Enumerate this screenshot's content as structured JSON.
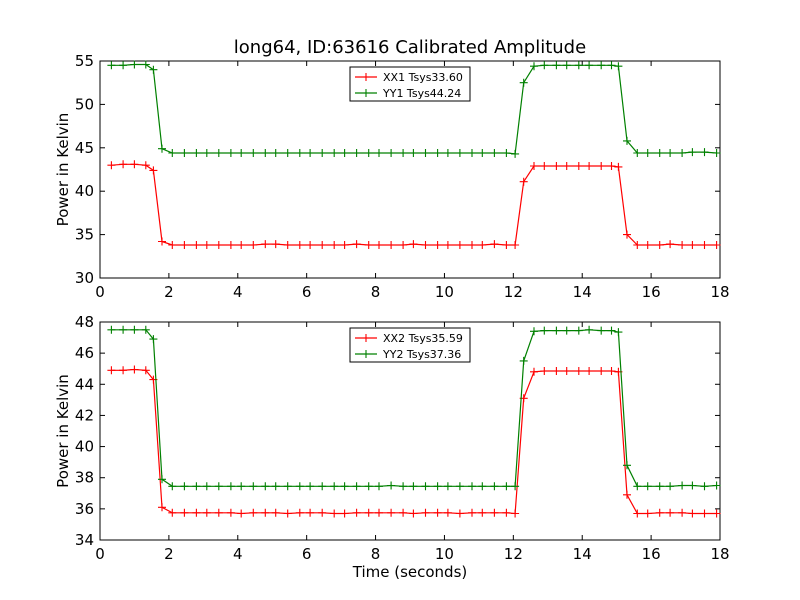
{
  "title": "long64, ID:63616 Calibrated Amplitude",
  "chart_data": [
    {
      "type": "line",
      "title": "long64, ID:63616 Calibrated Amplitude",
      "xlabel": "",
      "ylabel": "Power in Kelvin",
      "xlim": [
        0,
        18
      ],
      "ylim": [
        30,
        55
      ],
      "x_ticks": [
        "0",
        "2",
        "4",
        "6",
        "8",
        "10",
        "12",
        "14",
        "16",
        "18"
      ],
      "y_ticks": [
        "30",
        "35",
        "40",
        "45",
        "50",
        "55"
      ],
      "grid": false,
      "legend_position": "top-center",
      "x": [
        0.33,
        0.67,
        1.0,
        1.33,
        1.55,
        1.8,
        2.1,
        2.45,
        2.8,
        3.1,
        3.45,
        3.8,
        4.1,
        4.45,
        4.8,
        5.1,
        5.45,
        5.8,
        6.1,
        6.45,
        6.8,
        7.1,
        7.45,
        7.8,
        8.1,
        8.45,
        8.8,
        9.1,
        9.45,
        9.8,
        10.1,
        10.45,
        10.8,
        11.1,
        11.45,
        11.8,
        12.05,
        12.3,
        12.6,
        12.9,
        13.25,
        13.55,
        13.9,
        14.2,
        14.55,
        14.85,
        15.05,
        15.3,
        15.6,
        15.9,
        16.25,
        16.55,
        16.9,
        17.2,
        17.55,
        17.9
      ],
      "series": [
        {
          "name": "XX1 Tsys33.60",
          "color": "#ff0000",
          "values": [
            43.0,
            43.1,
            43.1,
            43.0,
            42.4,
            34.2,
            33.8,
            33.8,
            33.8,
            33.8,
            33.8,
            33.8,
            33.8,
            33.8,
            33.9,
            33.9,
            33.8,
            33.8,
            33.8,
            33.8,
            33.8,
            33.8,
            33.9,
            33.8,
            33.8,
            33.8,
            33.8,
            33.9,
            33.8,
            33.8,
            33.8,
            33.8,
            33.8,
            33.8,
            33.9,
            33.8,
            33.8,
            41.1,
            42.9,
            42.9,
            42.9,
            42.9,
            42.9,
            42.9,
            42.9,
            42.9,
            42.8,
            35.0,
            33.8,
            33.8,
            33.8,
            33.9,
            33.8,
            33.8,
            33.8,
            33.8
          ]
        },
        {
          "name": "YY1 Tsys44.24",
          "color": "#008000",
          "values": [
            54.5,
            54.5,
            54.6,
            54.6,
            54.0,
            44.9,
            44.4,
            44.4,
            44.4,
            44.4,
            44.4,
            44.4,
            44.4,
            44.4,
            44.4,
            44.4,
            44.4,
            44.4,
            44.4,
            44.4,
            44.4,
            44.4,
            44.4,
            44.4,
            44.4,
            44.4,
            44.4,
            44.4,
            44.4,
            44.4,
            44.4,
            44.4,
            44.4,
            44.4,
            44.4,
            44.4,
            44.3,
            52.5,
            54.4,
            54.5,
            54.5,
            54.5,
            54.5,
            54.5,
            54.5,
            54.5,
            54.4,
            45.8,
            44.4,
            44.4,
            44.4,
            44.4,
            44.4,
            44.5,
            44.5,
            44.4
          ]
        }
      ]
    },
    {
      "type": "line",
      "title": "",
      "xlabel": "Time (seconds)",
      "ylabel": "Power in Kelvin",
      "xlim": [
        0,
        18
      ],
      "ylim": [
        34,
        48
      ],
      "x_ticks": [
        "0",
        "2",
        "4",
        "6",
        "8",
        "10",
        "12",
        "14",
        "16",
        "18"
      ],
      "y_ticks": [
        "34",
        "36",
        "38",
        "40",
        "42",
        "44",
        "46",
        "48"
      ],
      "grid": false,
      "legend_position": "top-center",
      "x": [
        0.33,
        0.67,
        1.0,
        1.33,
        1.55,
        1.8,
        2.1,
        2.45,
        2.8,
        3.1,
        3.45,
        3.8,
        4.1,
        4.45,
        4.8,
        5.1,
        5.45,
        5.8,
        6.1,
        6.45,
        6.8,
        7.1,
        7.45,
        7.8,
        8.1,
        8.45,
        8.8,
        9.1,
        9.45,
        9.8,
        10.1,
        10.45,
        10.8,
        11.1,
        11.45,
        11.8,
        12.05,
        12.3,
        12.6,
        12.9,
        13.25,
        13.55,
        13.9,
        14.2,
        14.55,
        14.85,
        15.05,
        15.3,
        15.6,
        15.9,
        16.25,
        16.55,
        16.9,
        17.2,
        17.55,
        17.9
      ],
      "series": [
        {
          "name": "XX2 Tsys35.59",
          "color": "#ff0000",
          "values": [
            44.9,
            44.9,
            44.95,
            44.9,
            44.3,
            36.1,
            35.75,
            35.75,
            35.75,
            35.75,
            35.75,
            35.75,
            35.7,
            35.75,
            35.75,
            35.75,
            35.7,
            35.75,
            35.75,
            35.75,
            35.7,
            35.7,
            35.75,
            35.75,
            35.75,
            35.75,
            35.75,
            35.7,
            35.75,
            35.75,
            35.75,
            35.7,
            35.75,
            35.75,
            35.75,
            35.75,
            35.7,
            43.1,
            44.8,
            44.85,
            44.85,
            44.85,
            44.85,
            44.85,
            44.85,
            44.85,
            44.8,
            36.9,
            35.7,
            35.7,
            35.75,
            35.75,
            35.75,
            35.7,
            35.7,
            35.7
          ]
        },
        {
          "name": "YY2 Tsys37.36",
          "color": "#008000",
          "values": [
            47.5,
            47.5,
            47.5,
            47.5,
            46.9,
            37.9,
            37.45,
            37.45,
            37.45,
            37.45,
            37.45,
            37.45,
            37.45,
            37.45,
            37.45,
            37.45,
            37.45,
            37.45,
            37.45,
            37.45,
            37.45,
            37.45,
            37.45,
            37.45,
            37.45,
            37.5,
            37.45,
            37.45,
            37.45,
            37.45,
            37.45,
            37.45,
            37.45,
            37.45,
            37.45,
            37.45,
            37.45,
            45.5,
            47.4,
            47.45,
            47.45,
            47.45,
            47.45,
            47.5,
            47.45,
            47.45,
            47.35,
            38.8,
            37.45,
            37.45,
            37.45,
            37.45,
            37.5,
            37.5,
            37.45,
            37.5
          ]
        }
      ]
    }
  ]
}
